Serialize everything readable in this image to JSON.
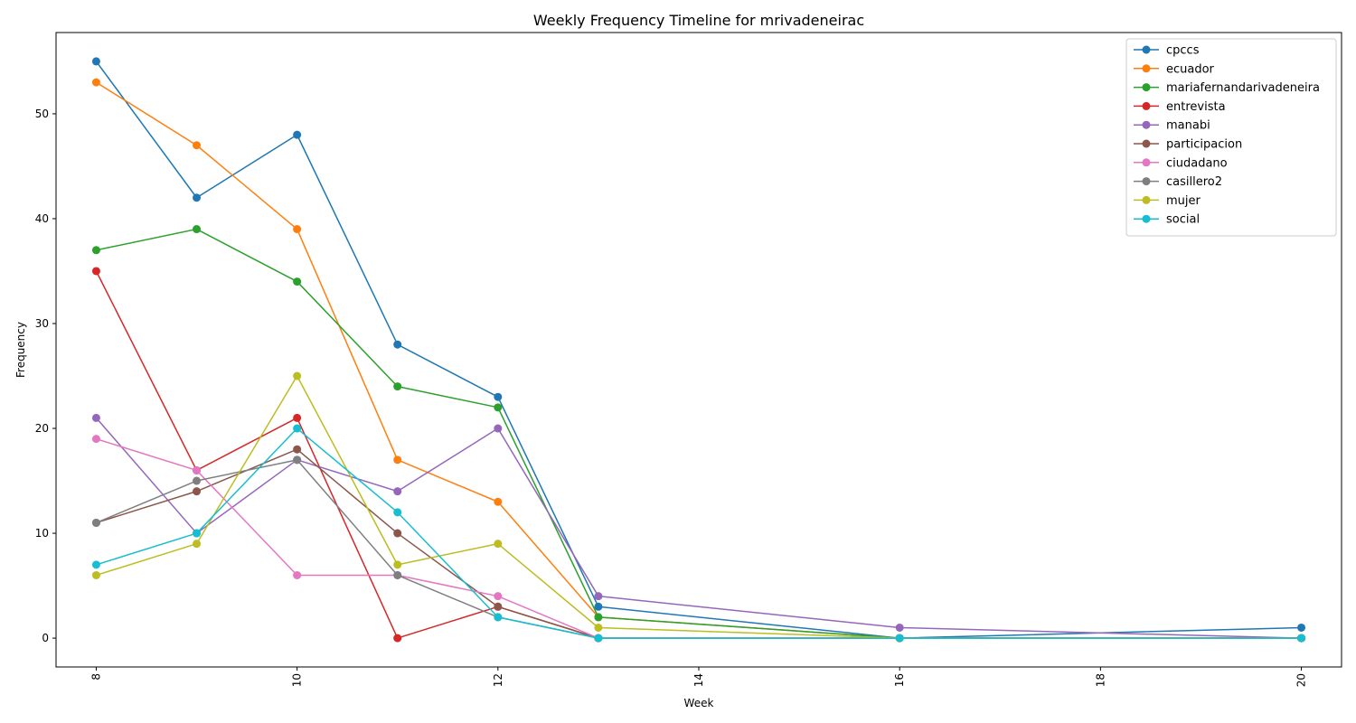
{
  "chart_data": {
    "type": "line",
    "title": "Weekly Frequency Timeline for mrivadeneirac",
    "xlabel": "Week",
    "ylabel": "Frequency",
    "x": [
      8,
      9,
      10,
      11,
      12,
      13,
      16,
      20
    ],
    "xlim": [
      7.6,
      20.4
    ],
    "ylim": [
      -2.75,
      57.75
    ],
    "xticks": [
      8,
      10,
      12,
      14,
      16,
      18,
      20
    ],
    "yticks": [
      0,
      10,
      20,
      30,
      40,
      50
    ],
    "xtick_rotation": 90,
    "legend_position": "top-right",
    "grid": false,
    "marker": "circle",
    "series": [
      {
        "name": "cpccs",
        "color": "#1f77b4",
        "values": [
          55,
          42,
          48,
          28,
          23,
          3,
          0,
          1
        ]
      },
      {
        "name": "ecuador",
        "color": "#ff7f0e",
        "values": [
          53,
          47,
          39,
          17,
          13,
          2,
          0,
          0
        ]
      },
      {
        "name": "mariafernandarivadeneira",
        "color": "#2ca02c",
        "values": [
          37,
          39,
          34,
          24,
          22,
          2,
          0,
          0
        ]
      },
      {
        "name": "entrevista",
        "color": "#d62728",
        "values": [
          35,
          16,
          21,
          0,
          3,
          0,
          0,
          0
        ]
      },
      {
        "name": "manabi",
        "color": "#9467bd",
        "values": [
          21,
          10,
          17,
          14,
          20,
          4,
          1,
          0
        ]
      },
      {
        "name": "participacion",
        "color": "#8c564b",
        "values": [
          11,
          14,
          18,
          10,
          3,
          0,
          0,
          0
        ]
      },
      {
        "name": "ciudadano",
        "color": "#e377c2",
        "values": [
          19,
          16,
          6,
          6,
          4,
          0,
          0,
          0
        ]
      },
      {
        "name": "casillero2",
        "color": "#7f7f7f",
        "values": [
          11,
          15,
          17,
          6,
          2,
          0,
          0,
          0
        ]
      },
      {
        "name": "mujer",
        "color": "#bcbd22",
        "values": [
          6,
          9,
          25,
          7,
          9,
          1,
          0,
          0
        ]
      },
      {
        "name": "social",
        "color": "#17becf",
        "values": [
          7,
          10,
          20,
          12,
          2,
          0,
          0,
          0
        ]
      }
    ]
  }
}
